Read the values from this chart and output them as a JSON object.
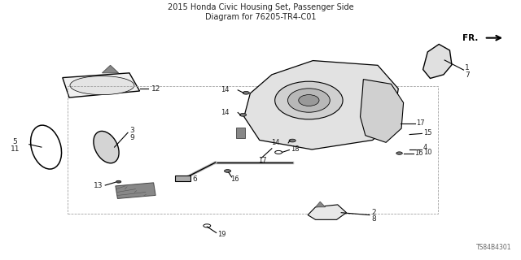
{
  "title": "2015 Honda Civic Housing Set, Passenger Side\nDiagram for 76205-TR4-C01",
  "bg_color": "#ffffff",
  "diagram_id": "TS84B4301",
  "fr_label": "FR.",
  "line_color": "#000000",
  "text_color": "#222222"
}
